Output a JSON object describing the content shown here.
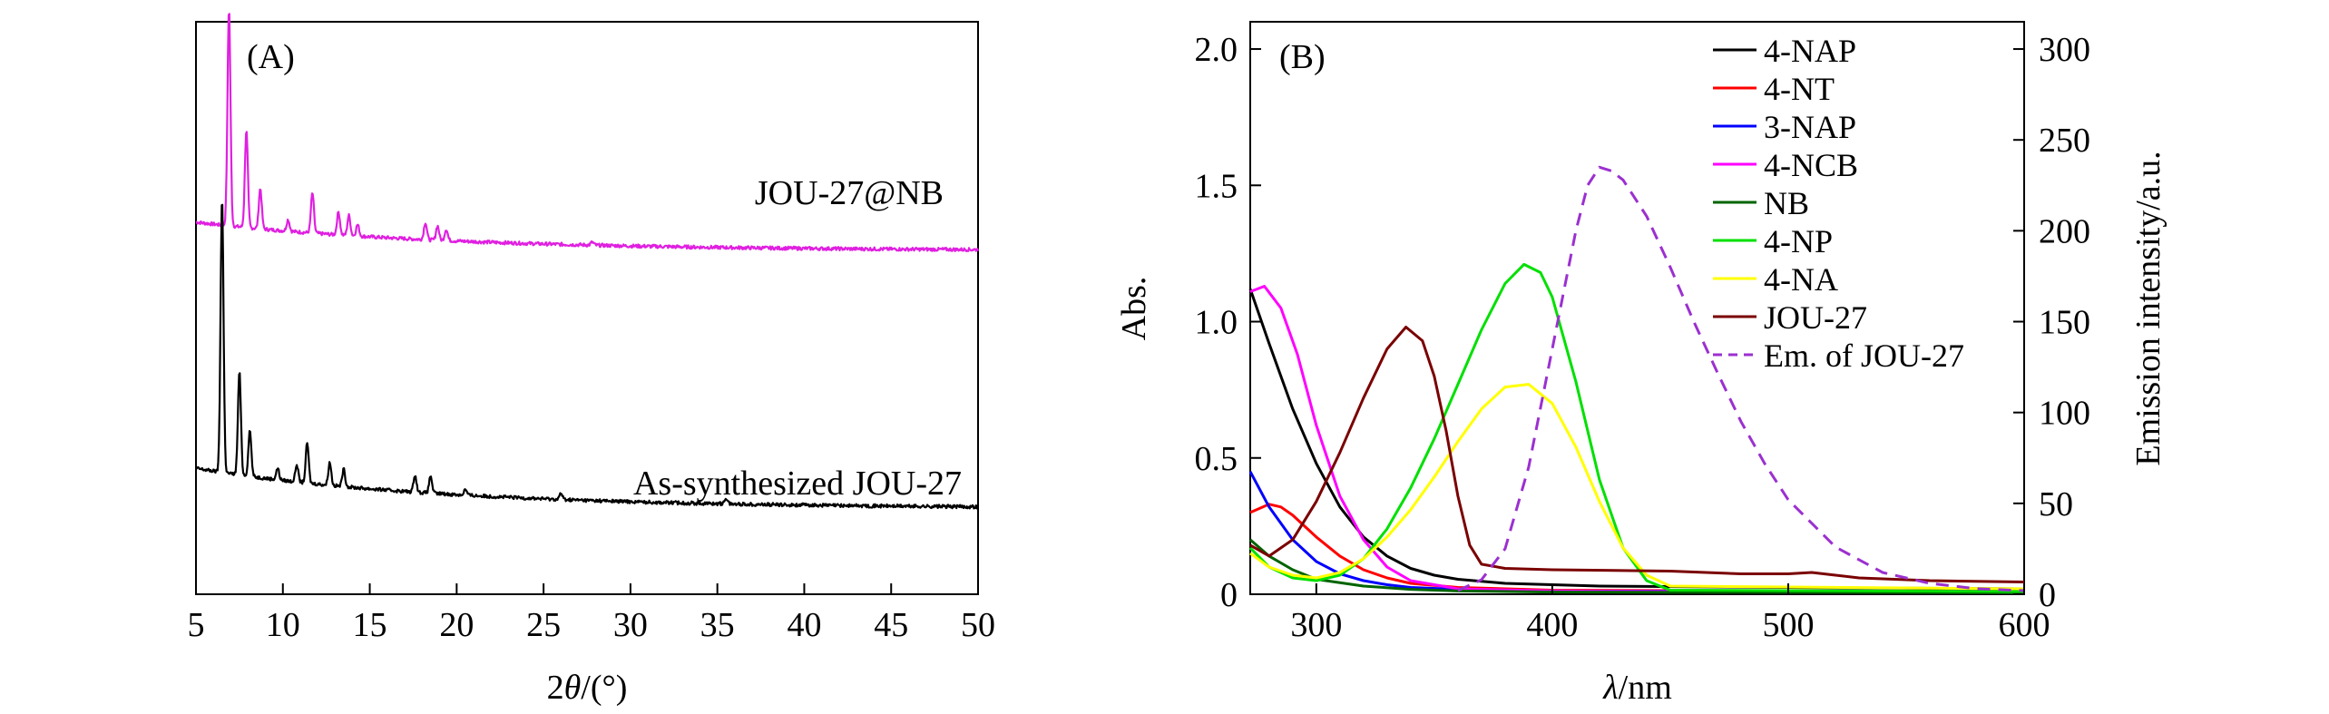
{
  "chart_data": [
    {
      "panel": "(A)",
      "type": "line",
      "xlabel": "2θ/(°)",
      "xlabel_parts": {
        "var": "2",
        "theta": "θ",
        "unit": "/(°)"
      },
      "xlim": [
        5,
        50
      ],
      "xticks": [
        5,
        10,
        15,
        20,
        25,
        30,
        35,
        40,
        45,
        50
      ],
      "yticks_shown": false,
      "series": [
        {
          "name": "JOU-27@NB",
          "color": "#e020e0",
          "baseline": 0.6,
          "decay": 0.05,
          "peaks": [
            [
              6.9,
              0.38
            ],
            [
              7.9,
              0.17
            ],
            [
              8.7,
              0.07
            ],
            [
              10.3,
              0.02
            ],
            [
              11.7,
              0.07
            ],
            [
              13.2,
              0.04
            ],
            [
              13.8,
              0.035
            ],
            [
              14.3,
              0.02
            ],
            [
              18.2,
              0.03
            ],
            [
              18.9,
              0.025
            ],
            [
              19.4,
              0.02
            ],
            [
              27.8,
              0.005
            ]
          ]
        },
        {
          "name": "As-synthesized JOU-27",
          "color": "#000000",
          "baseline": 0.15,
          "decay": 0.07,
          "peaks": [
            [
              6.5,
              0.48
            ],
            [
              7.5,
              0.18
            ],
            [
              8.1,
              0.08
            ],
            [
              9.7,
              0.02
            ],
            [
              10.8,
              0.03
            ],
            [
              11.4,
              0.07
            ],
            [
              12.7,
              0.04
            ],
            [
              13.5,
              0.03
            ],
            [
              17.6,
              0.03
            ],
            [
              18.5,
              0.03
            ],
            [
              20.5,
              0.01
            ],
            [
              26.0,
              0.01
            ],
            [
              35.5,
              0.01
            ]
          ]
        }
      ]
    },
    {
      "panel": "(B)",
      "type": "line",
      "xlabel": "λ/nm",
      "xlabel_parts": {
        "lambda": "λ",
        "unit": "/nm"
      },
      "ylabel": "Abs.",
      "y2label": "Emission intensity/a.u.",
      "xlim": [
        272,
        600
      ],
      "xticks": [
        300,
        400,
        500,
        600
      ],
      "ylim": [
        0,
        2.1
      ],
      "yticks": [
        0,
        0.5,
        1.0,
        1.5,
        2.0
      ],
      "ytick_labels": [
        "0",
        "0.5",
        "1.0",
        "1.5",
        "2.0"
      ],
      "y2lim": [
        0,
        315
      ],
      "y2ticks": [
        0,
        50,
        100,
        150,
        200,
        250,
        300
      ],
      "legend_position": "top-right",
      "series": [
        {
          "name": "4-NAP",
          "color": "#000000",
          "axis": "left",
          "dash": false,
          "x": [
            272,
            280,
            290,
            300,
            310,
            320,
            330,
            340,
            350,
            360,
            380,
            420,
            500,
            600
          ],
          "y": [
            1.12,
            0.92,
            0.68,
            0.48,
            0.32,
            0.21,
            0.14,
            0.095,
            0.07,
            0.055,
            0.04,
            0.03,
            0.025,
            0.02
          ]
        },
        {
          "name": "4-NT",
          "color": "#ff0000",
          "axis": "left",
          "dash": false,
          "x": [
            272,
            280,
            285,
            290,
            300,
            310,
            320,
            330,
            340,
            360,
            400,
            600
          ],
          "y": [
            0.3,
            0.33,
            0.32,
            0.29,
            0.21,
            0.14,
            0.09,
            0.06,
            0.04,
            0.025,
            0.015,
            0.01
          ]
        },
        {
          "name": "3-NAP",
          "color": "#0000ff",
          "axis": "left",
          "dash": false,
          "x": [
            272,
            280,
            290,
            300,
            310,
            320,
            330,
            340,
            360,
            400,
            600
          ],
          "y": [
            0.45,
            0.32,
            0.2,
            0.12,
            0.075,
            0.05,
            0.035,
            0.025,
            0.018,
            0.012,
            0.01
          ]
        },
        {
          "name": "4-NCB",
          "color": "#ff00ff",
          "axis": "left",
          "dash": false,
          "x": [
            272,
            278,
            285,
            292,
            300,
            310,
            320,
            330,
            340,
            360,
            400,
            450,
            600
          ],
          "y": [
            1.11,
            1.13,
            1.05,
            0.88,
            0.62,
            0.36,
            0.2,
            0.1,
            0.05,
            0.02,
            0.012,
            0.01,
            0.01
          ]
        },
        {
          "name": "NB",
          "color": "#006400",
          "axis": "left",
          "dash": false,
          "x": [
            272,
            280,
            290,
            300,
            320,
            340,
            360,
            400,
            600
          ],
          "y": [
            0.2,
            0.14,
            0.09,
            0.055,
            0.03,
            0.018,
            0.012,
            0.008,
            0.005
          ]
        },
        {
          "name": "4-NP",
          "color": "#00e000",
          "axis": "left",
          "dash": false,
          "x": [
            272,
            280,
            290,
            300,
            310,
            320,
            330,
            340,
            350,
            360,
            370,
            380,
            388,
            395,
            400,
            410,
            420,
            430,
            440,
            450,
            600
          ],
          "y": [
            0.17,
            0.1,
            0.06,
            0.05,
            0.07,
            0.13,
            0.24,
            0.39,
            0.57,
            0.77,
            0.97,
            1.14,
            1.21,
            1.18,
            1.09,
            0.78,
            0.42,
            0.17,
            0.05,
            0.015,
            0.01
          ]
        },
        {
          "name": "4-NA",
          "color": "#ffff00",
          "axis": "left",
          "dash": false,
          "x": [
            272,
            280,
            290,
            300,
            310,
            320,
            330,
            340,
            350,
            360,
            370,
            380,
            390,
            400,
            410,
            420,
            430,
            440,
            450,
            600
          ],
          "y": [
            0.15,
            0.1,
            0.07,
            0.06,
            0.08,
            0.13,
            0.21,
            0.31,
            0.43,
            0.56,
            0.68,
            0.76,
            0.77,
            0.7,
            0.54,
            0.34,
            0.17,
            0.07,
            0.03,
            0.02
          ]
        },
        {
          "name": "JOU-27",
          "color": "#7a0000",
          "axis": "left",
          "dash": false,
          "x": [
            272,
            280,
            290,
            300,
            310,
            320,
            330,
            338,
            345,
            350,
            355,
            360,
            365,
            370,
            380,
            400,
            450,
            480,
            500,
            510,
            530,
            560,
            600
          ],
          "y": [
            0.18,
            0.14,
            0.2,
            0.34,
            0.52,
            0.72,
            0.9,
            0.98,
            0.93,
            0.8,
            0.6,
            0.36,
            0.18,
            0.11,
            0.095,
            0.09,
            0.085,
            0.075,
            0.075,
            0.08,
            0.06,
            0.05,
            0.045
          ]
        },
        {
          "name": "Em. of JOU-27",
          "color": "#9b30d0",
          "axis": "right",
          "dash": true,
          "x": [
            360,
            370,
            380,
            390,
            400,
            410,
            415,
            420,
            425,
            430,
            440,
            450,
            460,
            470,
            480,
            490,
            500,
            520,
            540,
            560,
            580,
            600
          ],
          "y": [
            2,
            8,
            25,
            70,
            135,
            200,
            225,
            235,
            233,
            228,
            208,
            180,
            150,
            122,
            95,
            72,
            52,
            26,
            12,
            6,
            3,
            2
          ]
        }
      ]
    }
  ]
}
